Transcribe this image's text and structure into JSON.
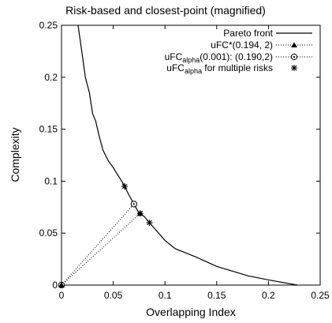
{
  "chart_data": {
    "type": "line",
    "title": "Risk-based and closest-point (magnified)",
    "xlabel": "Overlapping Index",
    "ylabel": "Complexity",
    "xlim": [
      0,
      0.25
    ],
    "ylim": [
      0,
      0.25
    ],
    "xticks": [
      0,
      0.05,
      0.1,
      0.15,
      0.2,
      0.25
    ],
    "yticks": [
      0,
      0.05,
      0.1,
      0.15,
      0.2,
      0.25
    ],
    "xtick_labels": [
      "0",
      "0.05",
      "0.1",
      "0.15",
      "0.2",
      "0.25"
    ],
    "ytick_labels": [
      "0",
      "0.05",
      "0.1",
      "0.15",
      "0.2",
      "0.25"
    ],
    "grid": false,
    "legend_position": "top-right",
    "series": [
      {
        "name": "Pareto front",
        "style": "solid line",
        "x": [
          0.016,
          0.02,
          0.023,
          0.027,
          0.03,
          0.033,
          0.036,
          0.04,
          0.045,
          0.05,
          0.055,
          0.06,
          0.065,
          0.07,
          0.075,
          0.08,
          0.085,
          0.1,
          0.11,
          0.13,
          0.15,
          0.18,
          0.2,
          0.228
        ],
        "y": [
          0.25,
          0.222,
          0.2,
          0.185,
          0.165,
          0.158,
          0.145,
          0.13,
          0.12,
          0.113,
          0.105,
          0.097,
          0.087,
          0.078,
          0.069,
          0.066,
          0.06,
          0.043,
          0.035,
          0.027,
          0.018,
          0.009,
          0.005,
          0.0
        ]
      },
      {
        "name": "uFC*(0.194, 2)",
        "style": "dotted line, triangle markers",
        "x": [
          0,
          0.076
        ],
        "y": [
          0,
          0.069
        ]
      },
      {
        "name": "uFC_alpha(0.001): (0.190,2)",
        "legend_main": "uFC",
        "legend_sub": "alpha",
        "legend_rest": "(0.001): (0.190,2)",
        "style": "dotted line, circled-dot markers",
        "x": [
          0,
          0.07
        ],
        "y": [
          0,
          0.078
        ]
      },
      {
        "name": "uFC_alpha for multiple risks",
        "legend_main": "uFC",
        "legend_sub": "alpha",
        "legend_rest": " for multiple risks",
        "style": "asterisk markers",
        "x": [
          0,
          0.061,
          0.07,
          0.076,
          0.085
        ],
        "y": [
          0,
          0.095,
          0.078,
          0.069,
          0.06
        ]
      }
    ]
  }
}
